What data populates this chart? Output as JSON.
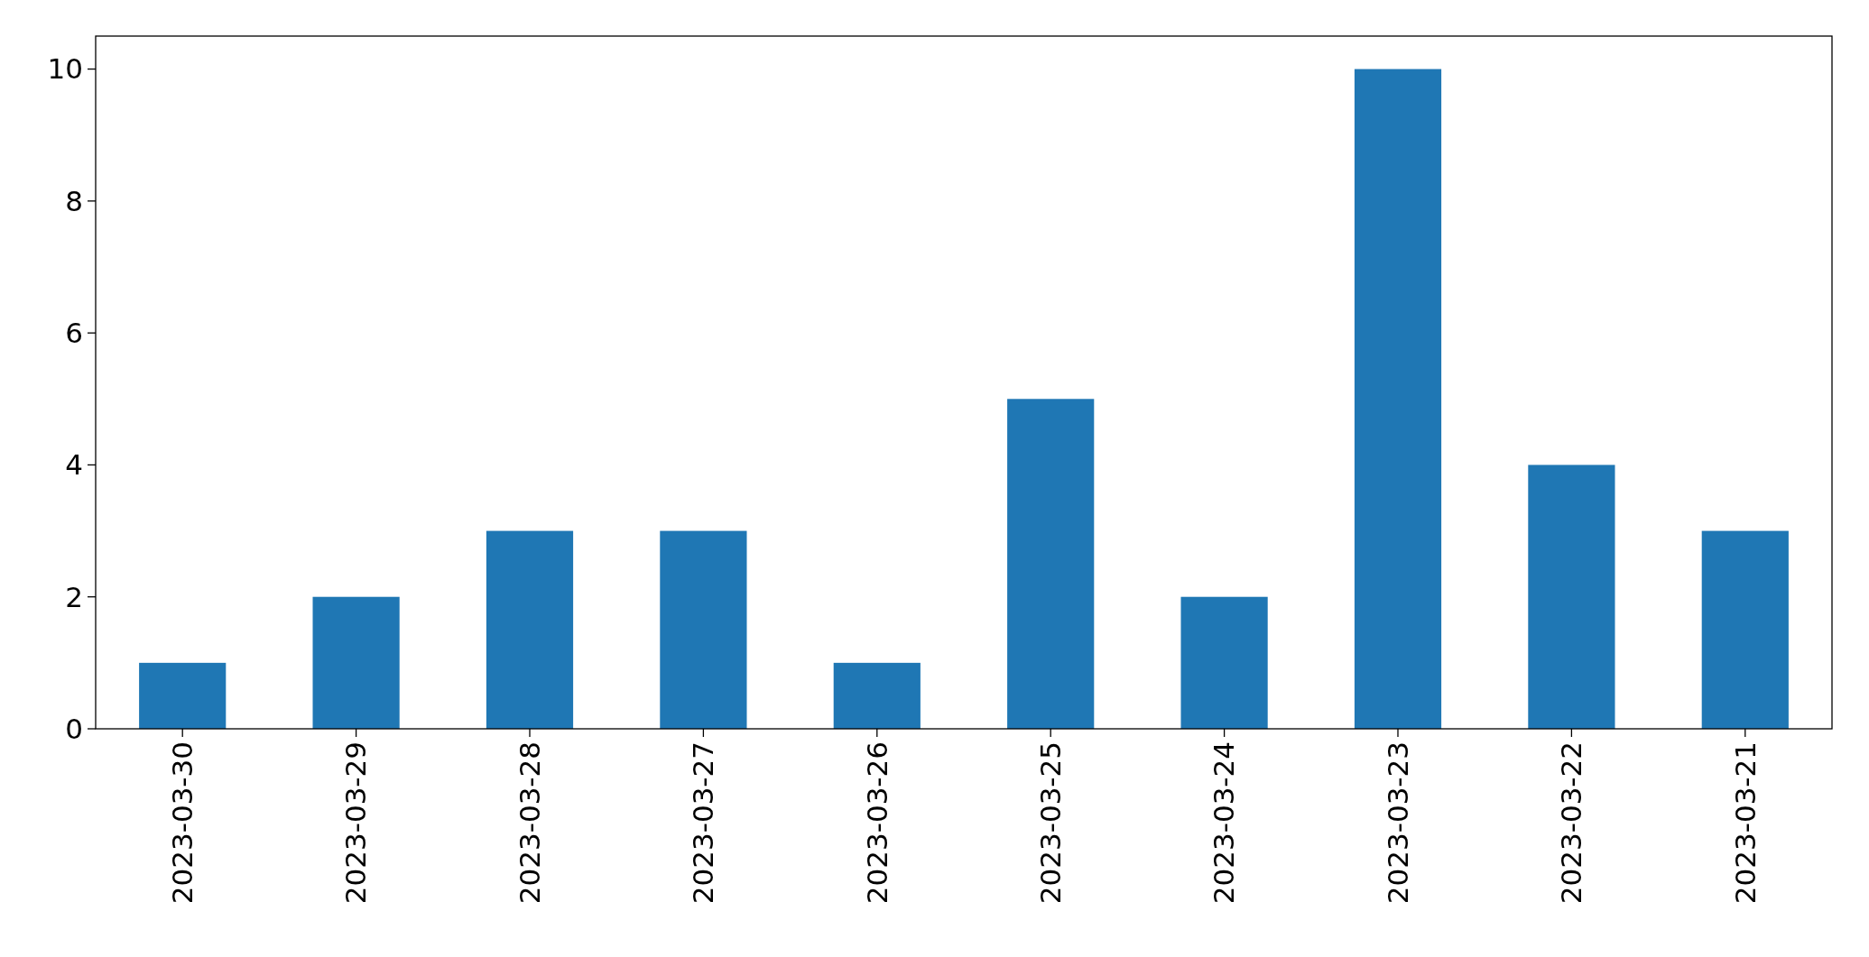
{
  "chart_data": {
    "type": "bar",
    "categories": [
      "2023-03-30",
      "2023-03-29",
      "2023-03-28",
      "2023-03-27",
      "2023-03-26",
      "2023-03-25",
      "2023-03-24",
      "2023-03-23",
      "2023-03-22",
      "2023-03-21"
    ],
    "values": [
      1,
      2,
      3,
      3,
      1,
      5,
      2,
      10,
      4,
      3
    ],
    "color": "#1f77b4",
    "ylim": [
      0,
      10.5
    ],
    "yticks": [
      0,
      2,
      4,
      6,
      8,
      10
    ],
    "grid": false
  }
}
